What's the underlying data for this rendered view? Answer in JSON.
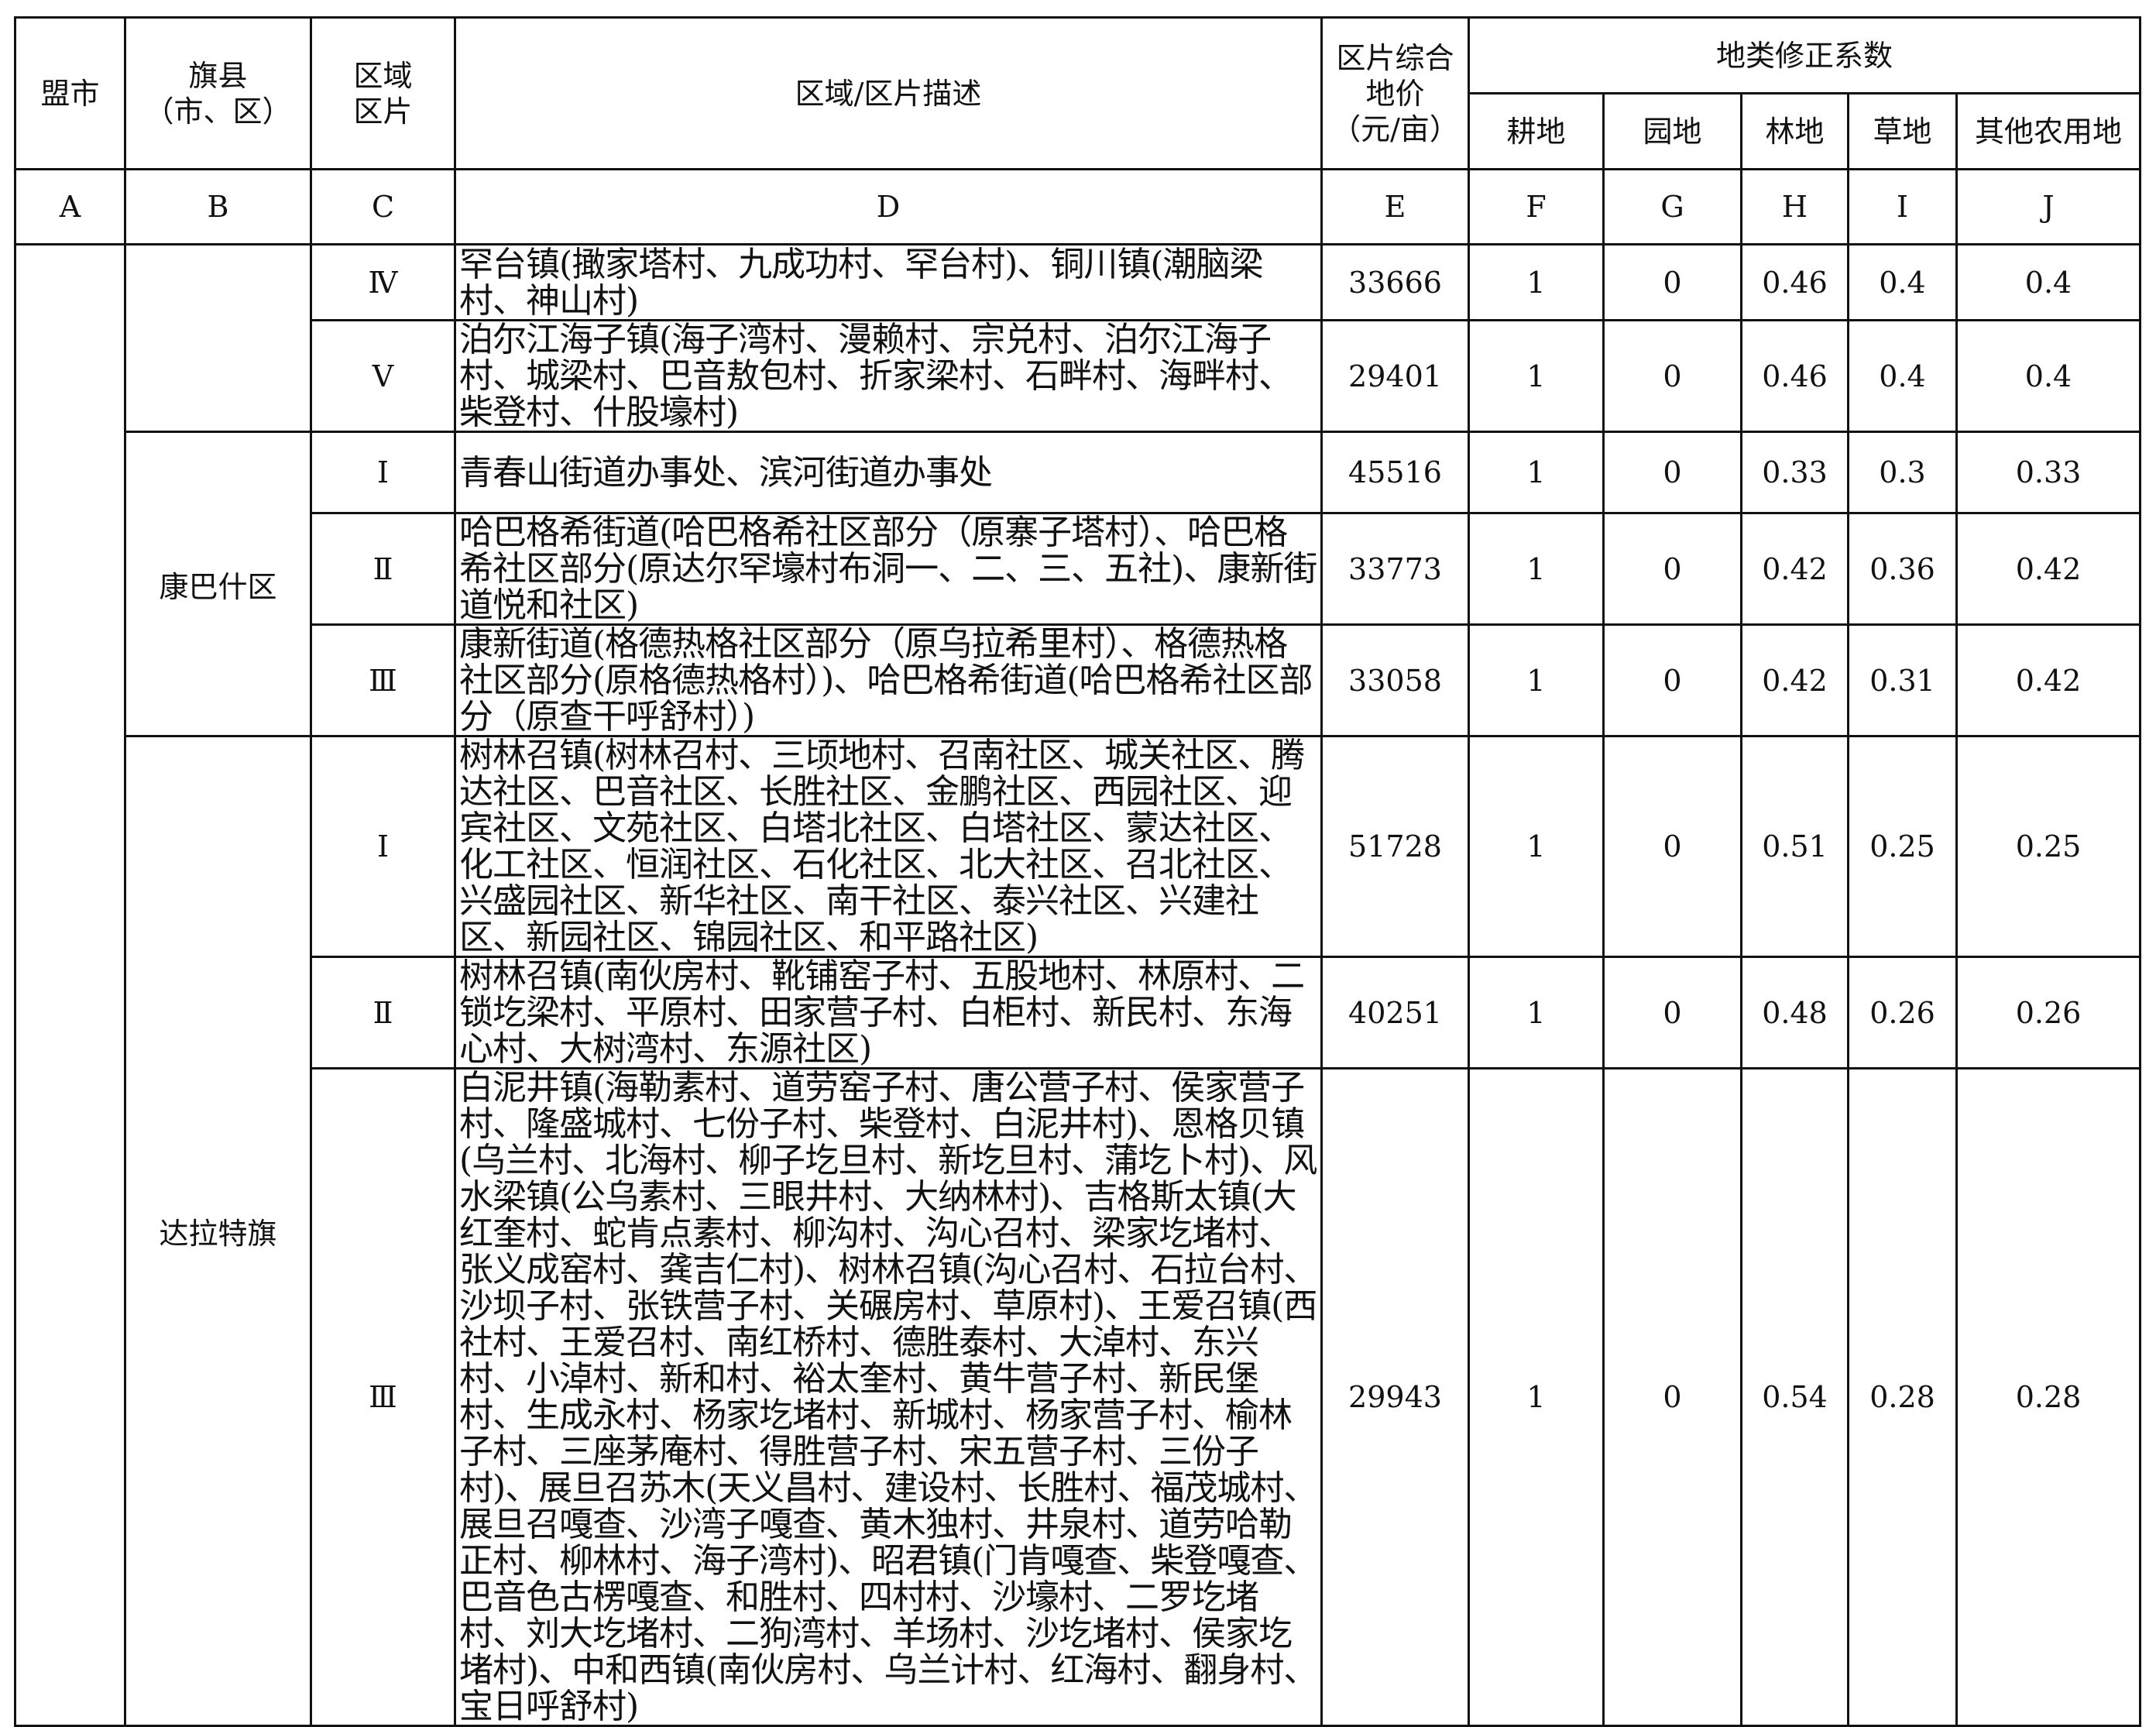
{
  "header": {
    "col_a": "盟市",
    "col_b": "旗县\n（市、区）",
    "col_c": "区域\n区片",
    "col_d": "区域/区片描述",
    "col_e": "区片综合\n地价\n（元/亩）",
    "coef_group": "地类修正系数",
    "col_f": "耕地",
    "col_g": "园地",
    "col_h": "林地",
    "col_i": "草地",
    "col_j": "其他农用地"
  },
  "letters": [
    "A",
    "B",
    "C",
    "D",
    "E",
    "F",
    "G",
    "H",
    "I",
    "J"
  ],
  "groups": [
    {
      "county": ""
    },
    {
      "county": "康巴什区"
    },
    {
      "county": "达拉特旗"
    }
  ],
  "rows": [
    {
      "zone": "Ⅳ",
      "desc": "罕台镇(撖家塔村、九成功村、罕台村)、铜川镇(潮脑梁村、神山村)",
      "price": "33666",
      "f": "1",
      "g": "0",
      "h": "0.46",
      "i": "0.4",
      "j": "0.4"
    },
    {
      "zone": "Ⅴ",
      "desc": "泊尔江海子镇(海子湾村、漫赖村、宗兑村、泊尔江海子村、城梁村、巴音敖包村、折家梁村、石畔村、海畔村、柴登村、什股壕村)",
      "price": "29401",
      "f": "1",
      "g": "0",
      "h": "0.46",
      "i": "0.4",
      "j": "0.4"
    },
    {
      "zone": "Ⅰ",
      "desc": "青春山街道办事处、滨河街道办事处",
      "price": "45516",
      "f": "1",
      "g": "0",
      "h": "0.33",
      "i": "0.3",
      "j": "0.33"
    },
    {
      "zone": "Ⅱ",
      "desc": "哈巴格希街道(哈巴格希社区部分（原寨子塔村）、哈巴格希社区部分(原达尔罕壕村布洞一、二、三、五社)、康新街道悦和社区)",
      "price": "33773",
      "f": "1",
      "g": "0",
      "h": "0.42",
      "i": "0.36",
      "j": "0.42"
    },
    {
      "zone": "Ⅲ",
      "desc": "康新街道(格德热格社区部分（原乌拉希里村）、格德热格社区部分(原格德热格村）)、哈巴格希街道(哈巴格希社区部分（原查干呼舒村）)",
      "price": "33058",
      "f": "1",
      "g": "0",
      "h": "0.42",
      "i": "0.31",
      "j": "0.42"
    },
    {
      "zone": "Ⅰ",
      "desc": "树林召镇(树林召村、三顷地村、召南社区、城关社区、腾达社区、巴音社区、长胜社区、金鹏社区、西园社区、迎宾社区、文苑社区、白塔北社区、白塔社区、蒙达社区、化工社区、恒润社区、石化社区、北大社区、召北社区、兴盛园社区、新华社区、南干社区、泰兴社区、兴建社区、新园社区、锦园社区、和平路社区)",
      "price": "51728",
      "f": "1",
      "g": "0",
      "h": "0.51",
      "i": "0.25",
      "j": "0.25"
    },
    {
      "zone": "Ⅱ",
      "desc": "树林召镇(南伙房村、靴铺窑子村、五股地村、林原村、二锁圪梁村、平原村、田家营子村、白柜村、新民村、东海心村、大树湾村、东源社区)",
      "price": "40251",
      "f": "1",
      "g": "0",
      "h": "0.48",
      "i": "0.26",
      "j": "0.26"
    },
    {
      "zone": "Ⅲ",
      "desc": "白泥井镇(海勒素村、道劳窑子村、唐公营子村、侯家营子村、隆盛城村、七份子村、柴登村、白泥井村)、恩格贝镇(乌兰村、北海村、柳子圪旦村、新圪旦村、蒲圪卜村)、风水梁镇(公乌素村、三眼井村、大纳林村)、吉格斯太镇(大红奎村、蛇肯点素村、柳沟村、沟心召村、梁家圪堵村、张义成窑村、龚吉仁村)、树林召镇(沟心召村、石拉台村、沙坝子村、张铁营子村、关碾房村、草原村)、王爱召镇(西社村、王爱召村、南红桥村、德胜泰村、大淖村、东兴村、小淖村、新和村、裕太奎村、黄牛营子村、新民堡村、生成永村、杨家圪堵村、新城村、杨家营子村、榆林子村、三座茅庵村、得胜营子村、宋五营子村、三份子村)、展旦召苏木(天义昌村、建设村、长胜村、福茂城村、展旦召嘎查、沙湾子嘎查、黄木独村、井泉村、道劳哈勒正村、柳林村、海子湾村)、昭君镇(门肯嘎查、柴登嘎查、巴音色古楞嘎查、和胜村、四村村、沙壕村、二罗圪堵村、刘大圪堵村、二狗湾村、羊场村、沙圪堵村、侯家圪堵村)、中和西镇(南伙房村、乌兰计村、红海村、翻身村、宝日呼舒村)",
      "price": "29943",
      "f": "1",
      "g": "0",
      "h": "0.54",
      "i": "0.28",
      "j": "0.28"
    }
  ]
}
